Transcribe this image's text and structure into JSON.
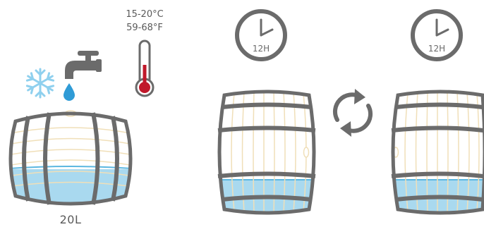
{
  "temperature": {
    "celsius": "15-20°C",
    "fahrenheit": "59-68°F"
  },
  "volume": "20L",
  "timers": [
    {
      "label": "12H"
    },
    {
      "label": "12H"
    }
  ],
  "icons": [
    "snowflake-icon",
    "faucet-icon",
    "water-drop-icon",
    "thermometer-icon",
    "clock-icon",
    "rotate-cycle-icon"
  ],
  "colors": {
    "gray": "#6b6b6b",
    "water": "#a9d9ef",
    "water_dark": "#5bb7e0",
    "snowflake": "#8fd0ee",
    "drop": "#2f9bd6",
    "thermo_red": "#c0182a",
    "wood_line": "#f0dfb8"
  }
}
